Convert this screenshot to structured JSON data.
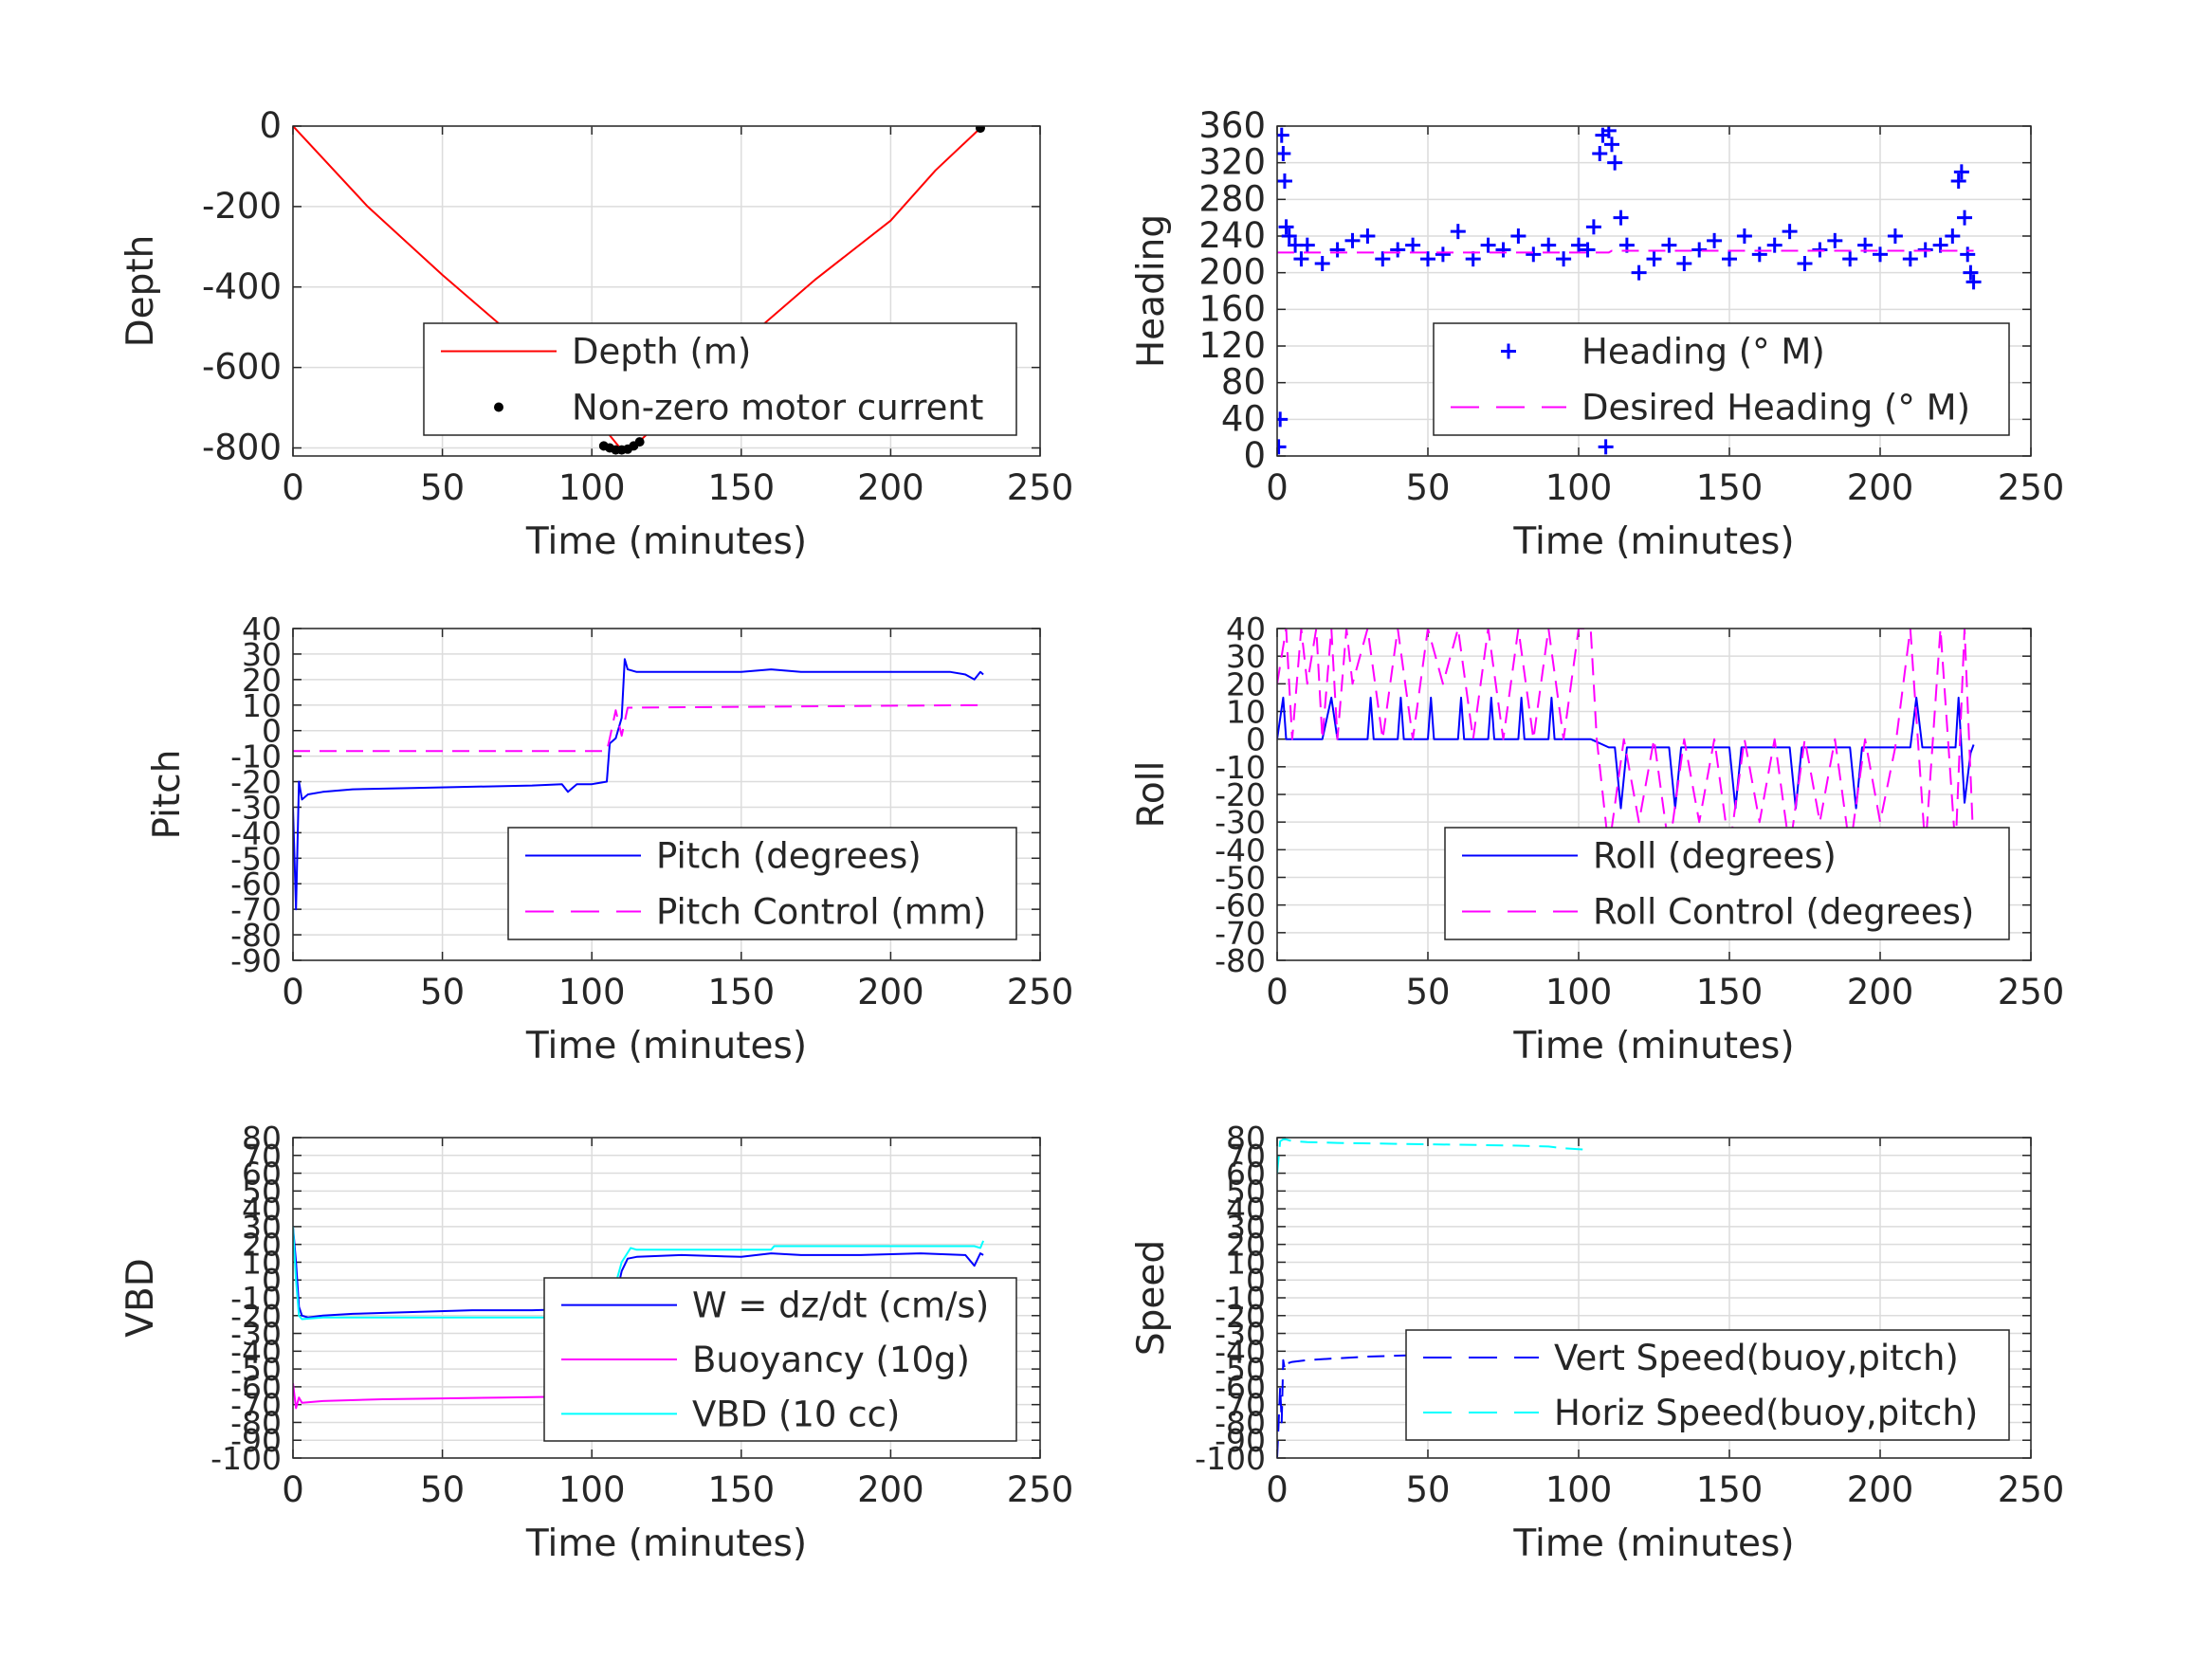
{
  "figure": {
    "background": "#ffffff",
    "grid_color": "#dcdcdc",
    "axis_color": "#262626"
  },
  "chart_data": [
    {
      "id": "depth",
      "type": "line",
      "xlabel": "Time (minutes)",
      "ylabel": "Depth",
      "xlim": [
        0,
        250
      ],
      "ylim": [
        -820,
        0
      ],
      "xticks": [
        "0",
        "50",
        "100",
        "150",
        "200",
        "250"
      ],
      "yticks": [
        "0",
        "-200",
        "-400",
        "-600",
        "-800"
      ],
      "ytick_values": [
        0,
        -200,
        -400,
        -600,
        -800
      ],
      "grid": true,
      "legend_position": "lower-right",
      "series": [
        {
          "name": "Depth (m)",
          "style": "line",
          "color": "#ff0000",
          "x": [
            0,
            25,
            50,
            75,
            100,
            105,
            110,
            115,
            125,
            150,
            175,
            200,
            215,
            230
          ],
          "y": [
            0,
            -200,
            -370,
            -530,
            -700,
            -760,
            -805,
            -790,
            -720,
            -540,
            -380,
            -235,
            -110,
            -5
          ]
        },
        {
          "name": "Non-zero motor current",
          "style": "dots",
          "color": "#000000",
          "x": [
            104,
            106,
            108,
            110,
            112,
            114,
            116,
            160,
            230
          ],
          "y": [
            -795,
            -800,
            -805,
            -805,
            -803,
            -795,
            -785,
            -503,
            -5
          ]
        }
      ]
    },
    {
      "id": "heading",
      "type": "scatter",
      "xlabel": "Time (minutes)",
      "ylabel": "Heading",
      "xlim": [
        0,
        250
      ],
      "ylim": [
        0,
        360
      ],
      "xticks": [
        "0",
        "50",
        "100",
        "150",
        "200",
        "250"
      ],
      "yticks": [
        "0",
        "40",
        "80",
        "120",
        "160",
        "200",
        "240",
        "280",
        "320",
        "360"
      ],
      "ytick_values": [
        0,
        40,
        80,
        120,
        160,
        200,
        240,
        280,
        320,
        360
      ],
      "grid": true,
      "legend_position": "lower-right",
      "series": [
        {
          "name": "Heading (° M)",
          "style": "plus",
          "color": "#0000ff",
          "x": [
            0.5,
            1,
            1.5,
            2,
            2.5,
            3,
            4,
            6,
            8,
            10,
            15,
            20,
            25,
            30,
            35,
            40,
            45,
            50,
            55,
            60,
            65,
            70,
            75,
            80,
            85,
            90,
            95,
            100,
            103,
            105,
            107,
            108,
            109,
            110,
            111,
            112,
            114,
            116,
            120,
            125,
            130,
            135,
            140,
            145,
            150,
            155,
            160,
            165,
            170,
            175,
            180,
            185,
            190,
            195,
            200,
            205,
            210,
            215,
            220,
            224,
            226,
            227,
            228,
            229,
            230,
            231
          ],
          "y": [
            10,
            40,
            350,
            330,
            300,
            250,
            240,
            230,
            215,
            230,
            210,
            225,
            235,
            240,
            215,
            225,
            230,
            215,
            220,
            245,
            215,
            230,
            225,
            240,
            220,
            230,
            215,
            230,
            225,
            250,
            330,
            350,
            10,
            355,
            340,
            320,
            260,
            230,
            200,
            215,
            230,
            210,
            225,
            235,
            215,
            240,
            220,
            230,
            245,
            210,
            225,
            235,
            215,
            230,
            220,
            240,
            215,
            225,
            230,
            240,
            300,
            310,
            260,
            220,
            200,
            190
          ]
        },
        {
          "name": "Desired Heading (° M)",
          "style": "dash",
          "color": "#ff00ff",
          "x": [
            0,
            110,
            111,
            231
          ],
          "y": [
            222,
            222,
            224,
            224
          ]
        }
      ]
    },
    {
      "id": "pitch",
      "type": "line",
      "xlabel": "Time (minutes)",
      "ylabel": "Pitch",
      "xlim": [
        0,
        250
      ],
      "ylim": [
        -90,
        40
      ],
      "xticks": [
        "0",
        "50",
        "100",
        "150",
        "200",
        "250"
      ],
      "yticks": [
        "40",
        "30",
        "20",
        "10",
        "0",
        "-10",
        "-20",
        "-30",
        "-40",
        "-50",
        "-60",
        "-70",
        "-80",
        "-90"
      ],
      "ytick_values": [
        40,
        30,
        20,
        10,
        0,
        -10,
        -20,
        -30,
        -40,
        -50,
        -60,
        -70,
        -80,
        -90
      ],
      "grid": true,
      "legend_position": "lower-right",
      "series": [
        {
          "name": "Pitch (degrees)",
          "style": "line",
          "color": "#0000ff",
          "x": [
            0,
            1,
            2,
            3,
            5,
            10,
            20,
            40,
            60,
            80,
            90,
            92,
            95,
            100,
            105,
            106,
            108,
            110,
            111,
            112,
            115,
            130,
            150,
            160,
            170,
            180,
            200,
            220,
            225,
            228,
            230,
            231
          ],
          "y": [
            -30,
            -70,
            -20,
            -27,
            -25,
            -24,
            -23,
            -22.5,
            -22,
            -21.5,
            -21,
            -24,
            -21,
            -21,
            -20,
            -5,
            -3,
            5,
            28,
            24,
            23,
            23,
            23,
            24,
            23,
            23,
            23,
            23,
            22,
            20,
            23,
            22
          ]
        },
        {
          "name": "Pitch Control (mm)",
          "style": "dash",
          "color": "#ff00ff",
          "x": [
            0,
            100,
            105,
            106,
            108,
            110,
            112,
            230
          ],
          "y": [
            -8,
            -8,
            -8,
            -3,
            8,
            -2,
            9,
            10
          ]
        }
      ]
    },
    {
      "id": "roll",
      "type": "line",
      "xlabel": "Time (minutes)",
      "ylabel": "Roll",
      "xlim": [
        0,
        250
      ],
      "ylim": [
        -80,
        40
      ],
      "xticks": [
        "0",
        "50",
        "100",
        "150",
        "200",
        "250"
      ],
      "yticks": [
        "40",
        "30",
        "20",
        "10",
        "0",
        "-10",
        "-20",
        "-30",
        "-40",
        "-50",
        "-60",
        "-70",
        "-80"
      ],
      "ytick_values": [
        40,
        30,
        20,
        10,
        0,
        -10,
        -20,
        -30,
        -40,
        -50,
        -60,
        -70,
        -80
      ],
      "grid": true,
      "legend_position": "lower-right",
      "series": [
        {
          "name": "Roll (degrees)",
          "style": "line",
          "color": "#0000ff",
          "x": [
            0,
            2,
            3,
            5,
            10,
            15,
            18,
            20,
            30,
            31,
            32,
            40,
            41,
            42,
            50,
            51,
            52,
            60,
            61,
            62,
            70,
            71,
            72,
            80,
            81,
            82,
            90,
            91,
            92,
            100,
            104,
            110,
            112,
            114,
            116,
            130,
            132,
            134,
            150,
            152,
            154,
            170,
            172,
            174,
            190,
            192,
            194,
            205,
            210,
            212,
            214,
            225,
            226,
            228,
            230,
            231
          ],
          "y": [
            0,
            15,
            0,
            0,
            0,
            0,
            15,
            0,
            0,
            15,
            0,
            0,
            15,
            0,
            0,
            15,
            0,
            0,
            15,
            0,
            0,
            15,
            0,
            0,
            15,
            0,
            0,
            15,
            0,
            0,
            0,
            -3,
            -3,
            -25,
            -3,
            -3,
            -25,
            -3,
            -3,
            -25,
            -3,
            -3,
            -25,
            -3,
            -3,
            -25,
            -3,
            -3,
            -3,
            15,
            -3,
            -3,
            15,
            -23,
            -5,
            -2
          ]
        },
        {
          "name": "Roll Control (degrees)",
          "style": "dash",
          "color": "#ff00ff",
          "x": [
            0,
            3,
            5,
            8,
            10,
            13,
            15,
            18,
            20,
            23,
            25,
            30,
            35,
            40,
            45,
            50,
            55,
            60,
            65,
            70,
            75,
            80,
            85,
            90,
            95,
            100,
            104,
            106,
            110,
            115,
            120,
            125,
            130,
            135,
            140,
            145,
            150,
            155,
            160,
            165,
            170,
            175,
            180,
            185,
            190,
            195,
            200,
            205,
            210,
            215,
            220,
            225,
            228,
            231
          ],
          "y": [
            20,
            40,
            0,
            40,
            20,
            40,
            0,
            40,
            0,
            40,
            20,
            40,
            0,
            40,
            0,
            40,
            20,
            40,
            0,
            40,
            0,
            40,
            0,
            40,
            0,
            40,
            40,
            0,
            -40,
            0,
            -30,
            0,
            -40,
            0,
            -30,
            0,
            -40,
            0,
            -30,
            0,
            -40,
            0,
            -30,
            0,
            -40,
            0,
            -30,
            -3,
            40,
            -40,
            40,
            -40,
            40,
            -40
          ]
        }
      ]
    },
    {
      "id": "vbd",
      "type": "line",
      "xlabel": "Time (minutes)",
      "ylabel": "VBD",
      "xlim": [
        0,
        250
      ],
      "ylim": [
        -100,
        80
      ],
      "xticks": [
        "0",
        "50",
        "100",
        "150",
        "200",
        "250"
      ],
      "yticks": [
        "80",
        "70",
        "60",
        "50",
        "40",
        "30",
        "20",
        "10",
        "0",
        "-10",
        "-20",
        "-30",
        "-40",
        "-50",
        "-60",
        "-70",
        "-80",
        "-90",
        "-100"
      ],
      "ytick_values": [
        80,
        70,
        60,
        50,
        40,
        30,
        20,
        10,
        0,
        -10,
        -20,
        -30,
        -40,
        -50,
        -60,
        -70,
        -80,
        -90,
        -100
      ],
      "grid": true,
      "legend_position": "lower-right",
      "series": [
        {
          "name": "W = dz/dt (cm/s)",
          "style": "line",
          "color": "#0000ff",
          "x": [
            0,
            1,
            2,
            3,
            5,
            10,
            20,
            40,
            60,
            80,
            90,
            95,
            100,
            105,
            108,
            110,
            112,
            115,
            130,
            150,
            160,
            170,
            190,
            210,
            225,
            228,
            230,
            231
          ],
          "y": [
            30,
            10,
            -15,
            -20,
            -21,
            -20,
            -19,
            -18,
            -17,
            -17,
            -16.5,
            -20,
            -17,
            -16,
            -10,
            5,
            12,
            13,
            14,
            13,
            15,
            14,
            14,
            15,
            14,
            8,
            15,
            14
          ]
        },
        {
          "name": "Buoyancy (10g)",
          "style": "line",
          "color": "#ff00ff",
          "x": [
            0,
            1,
            2,
            3,
            10,
            30,
            50,
            70,
            90,
            104
          ],
          "y": [
            -58,
            -72,
            -66,
            -69,
            -68,
            -67,
            -66.5,
            -66,
            -65.5,
            -65.5
          ]
        },
        {
          "name": "VBD (10 cc)",
          "style": "line",
          "color": "#00ffff",
          "x": [
            0,
            1,
            2,
            3,
            10,
            50,
            100,
            105,
            110,
            113,
            115,
            160,
            161,
            228,
            230,
            231
          ],
          "y": [
            30,
            0,
            -20,
            -22,
            -21,
            -21,
            -21,
            -20,
            10,
            18,
            17,
            17,
            19,
            19,
            18,
            22
          ]
        }
      ]
    },
    {
      "id": "speed",
      "type": "line",
      "xlabel": "Time (minutes)",
      "ylabel": "Speed",
      "xlim": [
        0,
        250
      ],
      "ylim": [
        -100,
        80
      ],
      "xticks": [
        "0",
        "50",
        "100",
        "150",
        "200",
        "250"
      ],
      "yticks": [
        "80",
        "70",
        "60",
        "50",
        "40",
        "30",
        "20",
        "10",
        "0",
        "-10",
        "-20",
        "-30",
        "-40",
        "-50",
        "-60",
        "-70",
        "-80",
        "-90",
        "-100"
      ],
      "ytick_values": [
        80,
        70,
        60,
        50,
        40,
        30,
        20,
        10,
        0,
        -10,
        -20,
        -30,
        -40,
        -50,
        -60,
        -70,
        -80,
        -90,
        -100
      ],
      "grid": true,
      "legend_position": "lower-right",
      "series": [
        {
          "name": "Vert Speed(buoy,pitch)",
          "style": "dash",
          "color": "#0000ff",
          "x": [
            0,
            1,
            1.5,
            2,
            2.5,
            3,
            5,
            10,
            20,
            30,
            40,
            50,
            60,
            70,
            80,
            90,
            95,
            100,
            104
          ],
          "y": [
            -100,
            -60,
            -80,
            -45,
            -50,
            -47,
            -46,
            -45,
            -44,
            -43,
            -42.5,
            -42,
            -42,
            -41.5,
            -41.5,
            -41,
            -41.5,
            -41,
            -41
          ]
        },
        {
          "name": "Horiz Speed(buoy,pitch)",
          "style": "dash",
          "color": "#00ffff",
          "x": [
            0,
            1,
            2,
            3,
            5,
            10,
            20,
            40,
            60,
            80,
            90,
            95,
            100,
            104
          ],
          "y": [
            60,
            78,
            79,
            79,
            78,
            77.5,
            77,
            76.5,
            76,
            75.5,
            75,
            74,
            73.5,
            73
          ]
        }
      ]
    }
  ]
}
